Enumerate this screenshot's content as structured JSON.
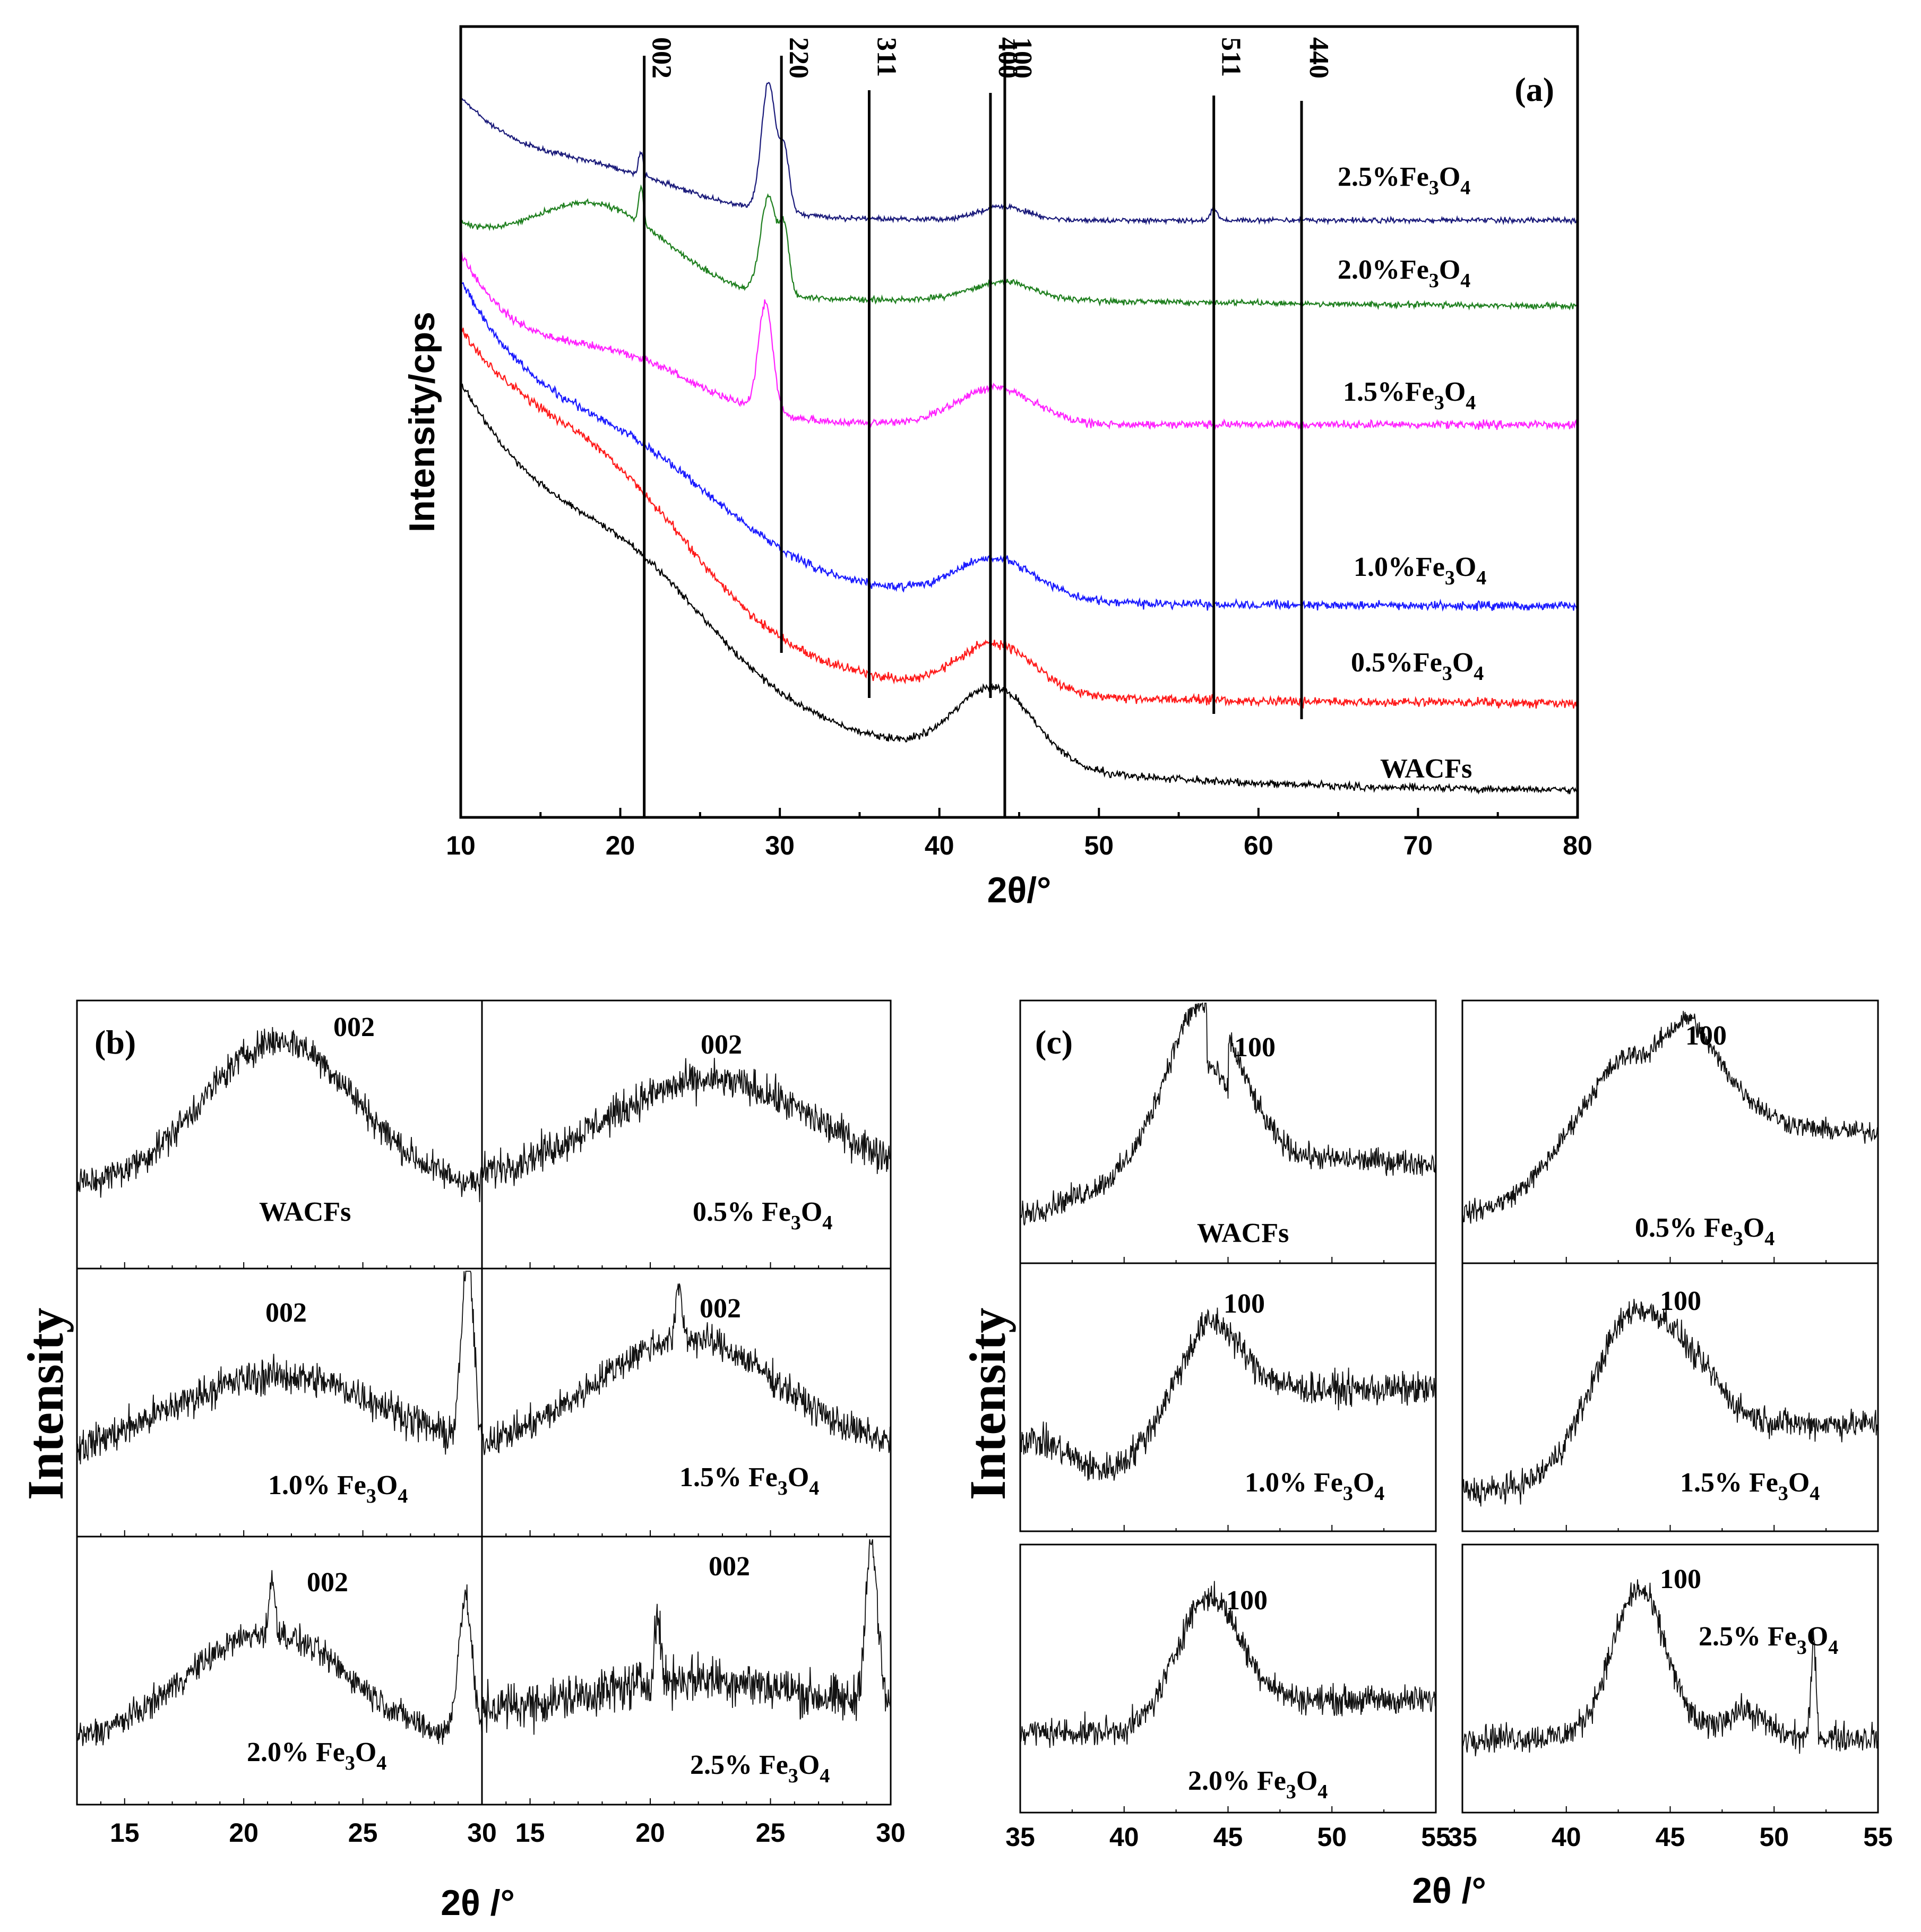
{
  "chart_data": [
    {
      "panel": "(a)",
      "type": "line",
      "xlabel": "2θ/°",
      "ylabel": "Intensity/cps",
      "xlim": [
        10,
        80
      ],
      "xticks": [
        10,
        20,
        30,
        40,
        50,
        60,
        70,
        80
      ],
      "x_tick_labels": [
        "10",
        "20",
        "30",
        "40",
        "50",
        "60",
        "70",
        "80"
      ],
      "series": [
        {
          "name": "2.5%Fe3O4",
          "label": "2.5%Fe",
          "sub3": "3",
          "o": "O",
          "sub4": "4",
          "color": "#1a1a7a"
        },
        {
          "name": "2.0%Fe3O4",
          "label": "2.0%Fe",
          "sub3": "3",
          "o": "O",
          "sub4": "4",
          "color": "#1e7f1e"
        },
        {
          "name": "1.5%Fe3O4",
          "label": "1.5%Fe",
          "sub3": "3",
          "o": "O",
          "sub4": "4",
          "color": "#ff22ff"
        },
        {
          "name": "1.0%Fe3O4",
          "label": "1.0%Fe",
          "sub3": "3",
          "o": "O",
          "sub4": "4",
          "color": "#1a1aff"
        },
        {
          "name": "0.5%Fe3O4",
          "label": "0.5%Fe",
          "sub3": "3",
          "o": "O",
          "sub4": "4",
          "color": "#ff1a1a"
        },
        {
          "name": "WACFs",
          "label": "WACFs",
          "color": "#000000"
        }
      ],
      "peak_lines": [
        {
          "label": "002",
          "x": 21.5
        },
        {
          "label": "220",
          "x": 30.1
        },
        {
          "label": "311",
          "x": 35.6
        },
        {
          "label": "400",
          "x": 43.2
        },
        {
          "label": "100",
          "x": 44.1
        },
        {
          "label": "511",
          "x": 57.2
        },
        {
          "label": "440",
          "x": 62.7
        }
      ]
    },
    {
      "panel": "(b)",
      "type": "line",
      "xlabel": "2θ /°",
      "ylabel": "Intensity",
      "xlim": [
        13,
        30
      ],
      "x_tick_labels_left": [
        "15",
        "20",
        "25",
        "30"
      ],
      "x_tick_labels_right": [
        "15",
        "20",
        "25",
        "30"
      ],
      "peak_label": "002",
      "subplots": [
        {
          "label": "WACFs"
        },
        {
          "label": "0.5% Fe",
          "sub3": "3",
          "o": "O",
          "sub4": "4"
        },
        {
          "label": "1.0% Fe",
          "sub3": "3",
          "o": "O",
          "sub4": "4"
        },
        {
          "label": "1.5% Fe",
          "sub3": "3",
          "o": "O",
          "sub4": "4"
        },
        {
          "label": "2.0% Fe",
          "sub3": "3",
          "o": "O",
          "sub4": "4"
        },
        {
          "label": "2.5% Fe",
          "sub3": "3",
          "o": "O",
          "sub4": "4"
        }
      ]
    },
    {
      "panel": "(c)",
      "type": "line",
      "xlabel": "2θ /°",
      "ylabel": "Intensity",
      "xlim": [
        35,
        55
      ],
      "x_tick_labels_left": [
        "35",
        "40",
        "45",
        "50",
        "55"
      ],
      "x_tick_labels_right": [
        "35",
        "40",
        "45",
        "50",
        "55"
      ],
      "peak_label": "100",
      "subplots": [
        {
          "label": "WACFs"
        },
        {
          "label": "0.5% Fe",
          "sub3": "3",
          "o": "O",
          "sub4": "4"
        },
        {
          "label": "1.0% Fe",
          "sub3": "3",
          "o": "O",
          "sub4": "4"
        },
        {
          "label": "1.5% Fe",
          "sub3": "3",
          "o": "O",
          "sub4": "4"
        },
        {
          "label": "2.0% Fe",
          "sub3": "3",
          "o": "O",
          "sub4": "4"
        },
        {
          "label": "2.5% Fe",
          "sub3": "3",
          "o": "O",
          "sub4": "4"
        }
      ]
    }
  ]
}
